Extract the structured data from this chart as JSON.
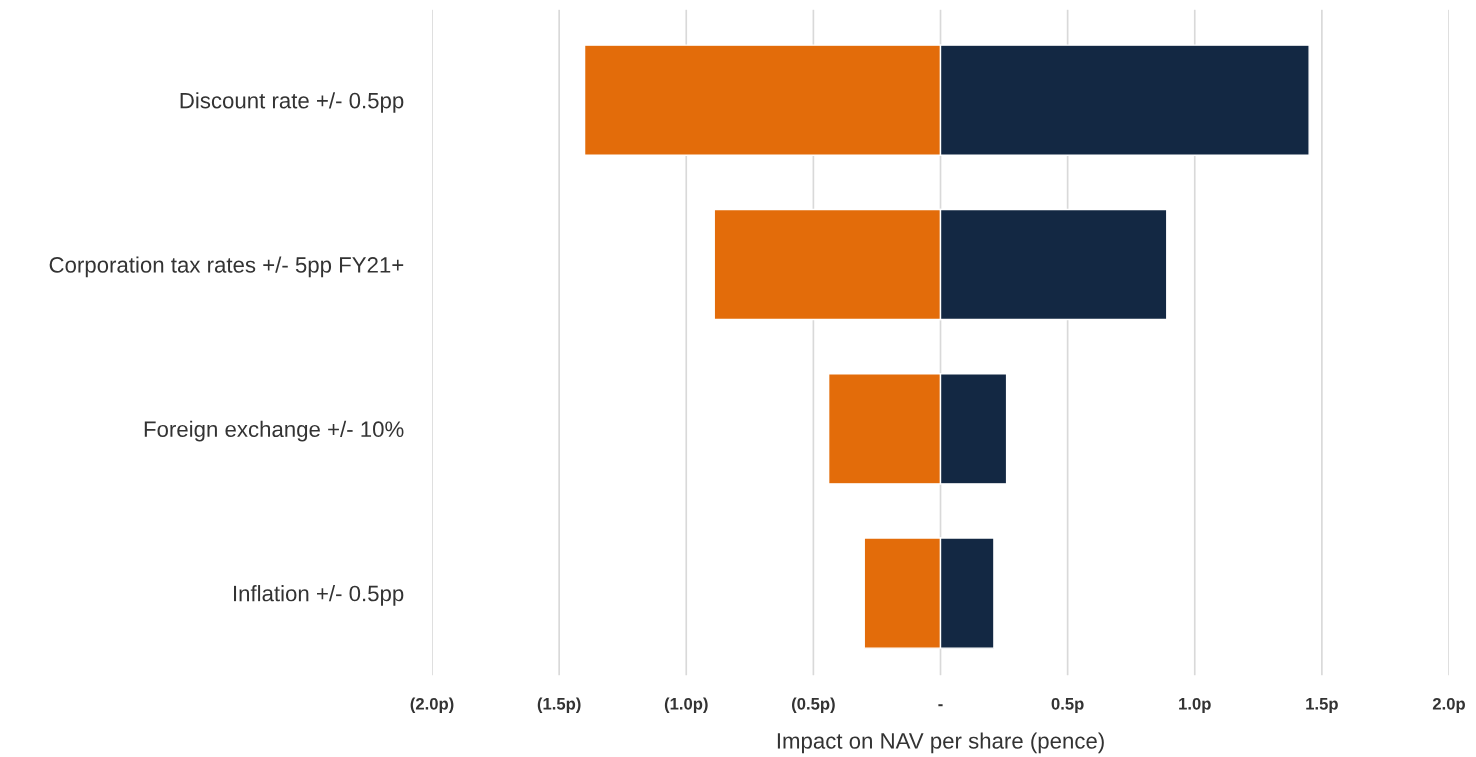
{
  "chart_data": {
    "type": "bar",
    "orientation": "horizontal",
    "stacked": true,
    "categories": [
      "Discount rate +/- 0.5pp",
      "Corporation tax rates +/- 5pp FY21+",
      "Foreign exchange +/- 10%",
      "Inflation +/- 0.5pp"
    ],
    "series": [
      {
        "color": "#e36c0a",
        "values": [
          -1.4,
          -0.89,
          -0.44,
          -0.3
        ]
      },
      {
        "color": "#132843",
        "values": [
          1.45,
          0.89,
          0.26,
          0.21
        ]
      }
    ],
    "xlabel": "Impact on NAV per share (pence)",
    "xlim": [
      -2.0,
      2.0
    ],
    "xticks": [
      {
        "value": -2.0,
        "label": "(2.0p)"
      },
      {
        "value": -1.5,
        "label": "(1.5p)"
      },
      {
        "value": -1.0,
        "label": "(1.0p)"
      },
      {
        "value": -0.5,
        "label": "(0.5p)"
      },
      {
        "value": 0,
        "label": "-"
      },
      {
        "value": 0.5,
        "label": "0.5p"
      },
      {
        "value": 1.0,
        "label": "1.0p"
      },
      {
        "value": 1.5,
        "label": "1.5p"
      },
      {
        "value": 2.0,
        "label": "2.0p"
      }
    ],
    "grid": "x"
  }
}
